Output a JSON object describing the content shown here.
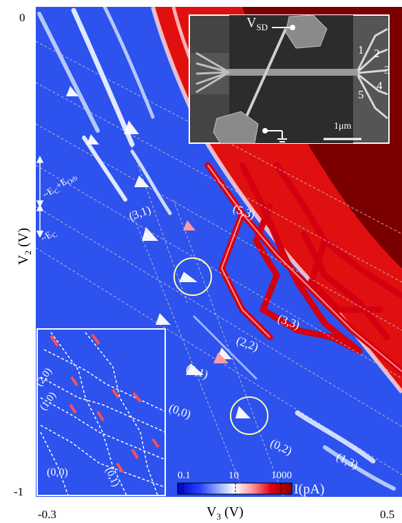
{
  "figure": {
    "x_axis": {
      "label": "V",
      "sub": "3",
      "unit": " (V)",
      "min_label": "-0.3",
      "max_label": "0.5"
    },
    "y_axis": {
      "label": "V",
      "sub": "2",
      "unit": " (V)",
      "top_label": "0",
      "bottom_label": "-1"
    },
    "charge_state_labels": [
      "(3,1)",
      "(5,3)",
      "(3,3)",
      "(2,2)",
      "(1,1)",
      "(0,0)",
      "(0,2)",
      "(1,3)"
    ],
    "energy_labels": {
      "upper": "~E",
      "upper_sub": "C",
      "upper_plus": "+E",
      "upper_sub2": "Orb",
      "lower": "~E",
      "lower_sub": "C"
    },
    "sem_inset": {
      "vsd_label": "V",
      "vsd_sub": "SD",
      "gate_numbers": [
        "1",
        "2",
        "3",
        "4",
        "5"
      ],
      "scale_bar": "1μm"
    },
    "schematic_inset": {
      "labels": [
        "(2,0)",
        "(1,0)",
        "(0,0)",
        "(0,1)"
      ]
    },
    "colorbar": {
      "tick_labels": [
        "0.1",
        "10",
        "1000"
      ],
      "unit_label": "I(pA)",
      "colors": [
        "#0000c8",
        "#2846ff",
        "#b4c8ff",
        "#ffffff",
        "#ff9aa0",
        "#e00010",
        "#8a0000"
      ]
    },
    "colors": {
      "background_blue": "#2d52ee",
      "dark_red": "#7a0000",
      "red": "#e01010",
      "line_gray": "#c8c8c8"
    }
  }
}
